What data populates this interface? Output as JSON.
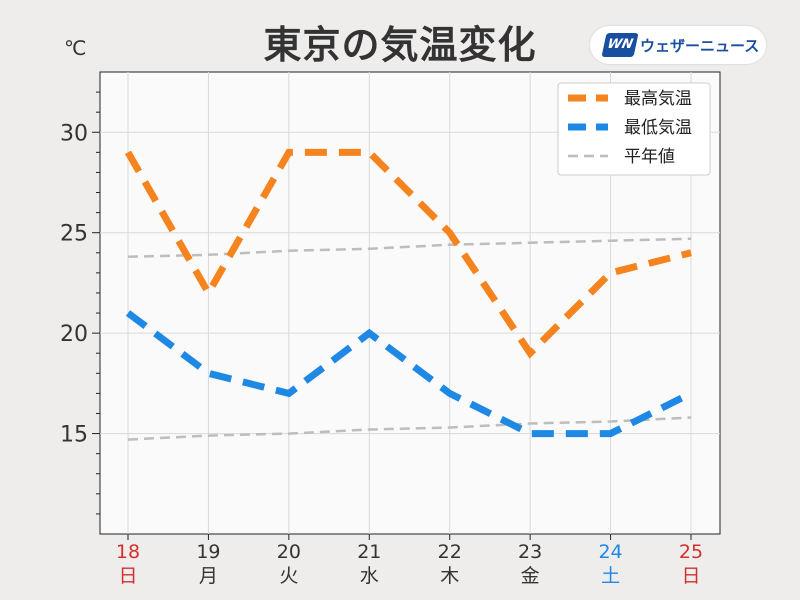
{
  "header": {
    "title": "東京の気温変化",
    "unit": "℃",
    "brand": "ウェザーニュース",
    "brand_mark": "WN"
  },
  "colors": {
    "high": "#f5841f",
    "low": "#1e88e5",
    "normal": "#bdbdbd",
    "weekday": "#333333",
    "sunday": "#d32f2f",
    "saturday": "#1e88e5"
  },
  "chart_data": {
    "type": "line",
    "title": "東京の気温変化",
    "ylabel": "℃",
    "ylim": [
      10,
      33
    ],
    "yticks": [
      15,
      20,
      25,
      30
    ],
    "grid": true,
    "legend_position": "top-right",
    "x": [
      {
        "date": "18",
        "weekday": "日",
        "day_type": "sunday"
      },
      {
        "date": "19",
        "weekday": "月",
        "day_type": "weekday"
      },
      {
        "date": "20",
        "weekday": "火",
        "day_type": "weekday"
      },
      {
        "date": "21",
        "weekday": "水",
        "day_type": "weekday"
      },
      {
        "date": "22",
        "weekday": "木",
        "day_type": "weekday"
      },
      {
        "date": "23",
        "weekday": "金",
        "day_type": "weekday"
      },
      {
        "date": "24",
        "weekday": "土",
        "day_type": "saturday"
      },
      {
        "date": "25",
        "weekday": "日",
        "day_type": "sunday"
      }
    ],
    "series": [
      {
        "name": "最高気温",
        "key": "high",
        "values": [
          29,
          22,
          29,
          29,
          25,
          19,
          23,
          24
        ]
      },
      {
        "name": "最低気温",
        "key": "low",
        "values": [
          21,
          18,
          17,
          20,
          17,
          15,
          15,
          17
        ]
      },
      {
        "name": "平年値",
        "key": "normal_high",
        "values": [
          23.8,
          23.9,
          24.1,
          24.2,
          24.4,
          24.5,
          24.6,
          24.7
        ]
      },
      {
        "name": "",
        "key": "normal_low",
        "values": [
          14.7,
          14.9,
          15.0,
          15.2,
          15.3,
          15.5,
          15.6,
          15.8
        ]
      }
    ],
    "legend": [
      {
        "label": "最高気温",
        "key": "high"
      },
      {
        "label": "最低気温",
        "key": "low"
      },
      {
        "label": "平年値",
        "key": "normal"
      }
    ]
  }
}
